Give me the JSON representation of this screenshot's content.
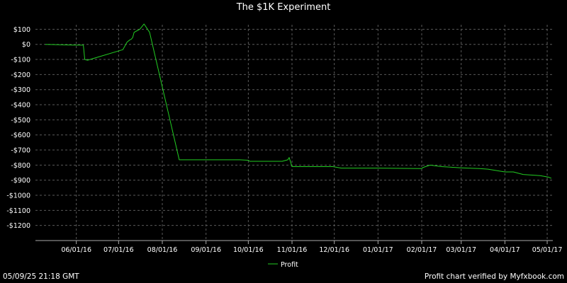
{
  "chart_data": {
    "type": "line",
    "title": "The $1K Experiment",
    "xlabel": "",
    "ylabel": "",
    "ylim": [
      -1300,
      130
    ],
    "y_ticks": [
      100,
      0,
      -100,
      -200,
      -300,
      -400,
      -500,
      -600,
      -700,
      -800,
      -900,
      -1000,
      -1100,
      -1200
    ],
    "y_tick_labels": [
      "$100",
      "$0",
      "-$100",
      "-$200",
      "-$300",
      "-$400",
      "-$500",
      "-$600",
      "-$700",
      "-$800",
      "-$900",
      "-$1000",
      "-$1100",
      "-$1200"
    ],
    "x_range": [
      "2016-05-03",
      "2017-05-05"
    ],
    "x_ticks": [
      "2016-06-01",
      "2016-07-01",
      "2016-08-01",
      "2016-09-01",
      "2016-10-01",
      "2016-11-01",
      "2016-12-01",
      "2017-01-01",
      "2017-02-01",
      "2017-03-01",
      "2017-04-01",
      "2017-05-01"
    ],
    "x_tick_labels": [
      "06/01/16",
      "07/01/16",
      "08/01/16",
      "09/01/16",
      "10/01/16",
      "11/01/16",
      "12/01/16",
      "01/01/17",
      "02/01/17",
      "03/01/17",
      "04/01/17",
      "05/01/17"
    ],
    "grid": true,
    "legend": "bottom-center",
    "series": [
      {
        "name": "Profit",
        "color": "#22cc22",
        "x": [
          "2016-05-10",
          "2016-05-31",
          "2016-06-06",
          "2016-06-07",
          "2016-06-09",
          "2016-07-04",
          "2016-07-07",
          "2016-07-09",
          "2016-07-10",
          "2016-07-11",
          "2016-07-12",
          "2016-07-14",
          "2016-07-16",
          "2016-07-19",
          "2016-07-23",
          "2016-08-13",
          "2016-09-01",
          "2016-09-25",
          "2016-10-01",
          "2016-10-02",
          "2016-10-25",
          "2016-10-29",
          "2016-10-30",
          "2016-11-01",
          "2016-11-30",
          "2016-12-06",
          "2017-01-01",
          "2017-02-01",
          "2017-02-02",
          "2017-02-07",
          "2017-02-15",
          "2017-03-01",
          "2017-03-14",
          "2017-03-20",
          "2017-04-01",
          "2017-04-07",
          "2017-04-11",
          "2017-04-14",
          "2017-04-26",
          "2017-05-02",
          "2017-05-04"
        ],
        "y": [
          0,
          -5,
          -5,
          -100,
          -105,
          -35,
          15,
          30,
          35,
          45,
          80,
          90,
          100,
          135,
          80,
          -765,
          -765,
          -765,
          -768,
          -775,
          -775,
          -765,
          -750,
          -810,
          -810,
          -820,
          -820,
          -823,
          -815,
          -800,
          -810,
          -818,
          -823,
          -827,
          -845,
          -845,
          -855,
          -862,
          -870,
          -880,
          -888
        ]
      }
    ]
  },
  "footer": {
    "timestamp": "05/09/25 21:18 GMT",
    "verified": "Profit chart verified by Myfxbook.com"
  }
}
